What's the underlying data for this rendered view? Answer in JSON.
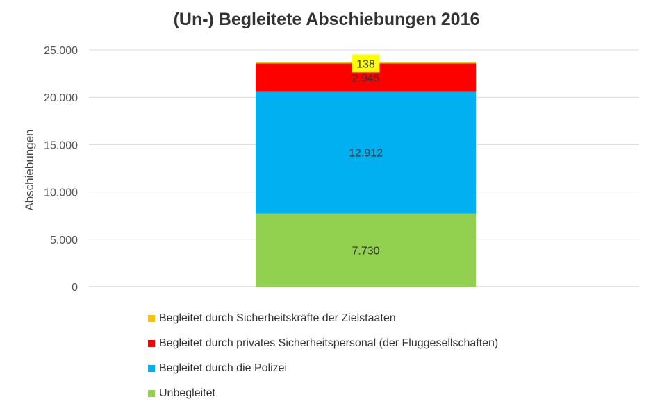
{
  "chart_data": {
    "type": "bar",
    "stacked": true,
    "title": "(Un-) Begleitete Abschiebungen 2016",
    "xlabel": "",
    "ylabel": "Abschiebungen",
    "ylim": [
      0,
      25000
    ],
    "yticks": [
      0,
      5000,
      10000,
      15000,
      20000,
      25000
    ],
    "ytick_labels": [
      "0",
      "5.000",
      "10.000",
      "15.000",
      "20.000",
      "25.000"
    ],
    "grid": true,
    "legend_position": "bottom",
    "categories": [
      ""
    ],
    "series": [
      {
        "name": "Unbegleitet",
        "values": [
          7730
        ],
        "label": "7.730",
        "color": "#92d050"
      },
      {
        "name": "Begleitet durch die Polizei",
        "values": [
          12912
        ],
        "label": "12.912",
        "color": "#00b0f0"
      },
      {
        "name": "Begleitet durch privates Sicherheitspersonal (der Fluggesellschaften)",
        "values": [
          2945
        ],
        "label": "2.945",
        "color": "#ff0000"
      },
      {
        "name": "Begleitet durch Sicherheitskräfte der Zielstaaten",
        "values": [
          138
        ],
        "label": "138",
        "color": "#ffc000",
        "label_highlight": "#ffff00"
      }
    ],
    "legend_order": [
      3,
      2,
      1,
      0
    ]
  }
}
